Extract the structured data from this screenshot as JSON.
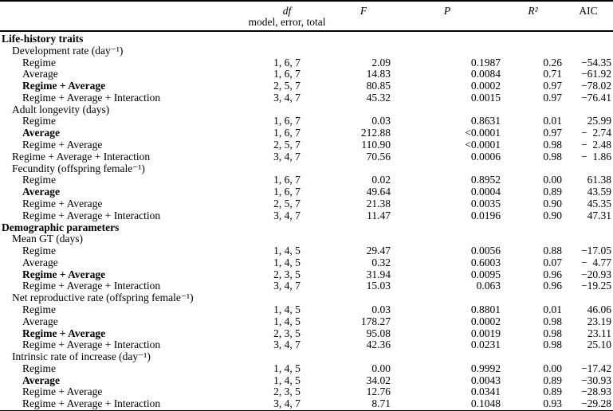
{
  "table": {
    "header": {
      "df_line1": "df",
      "df_line2": "model, error, total",
      "f": "F",
      "p": "P",
      "r2": "R²",
      "aic": "AIC"
    },
    "rows": [
      {
        "label": "Life-history traits",
        "indent": 0,
        "bold": true
      },
      {
        "label": "Development rate (day⁻¹)",
        "indent": 1
      },
      {
        "label": "Regime",
        "indent": 2,
        "df": "1, 6, 7",
        "f": "2.09",
        "p": "0.1987",
        "r2": "0.26",
        "aic": "−54.35"
      },
      {
        "label": "Average",
        "indent": 2,
        "df": "1, 6, 7",
        "f": "14.83",
        "p": "0.0084",
        "r2": "0.71",
        "aic": "−61.92"
      },
      {
        "label": "Regime + Average",
        "indent": 2,
        "bold": true,
        "df": "2, 5, 7",
        "f": "80.85",
        "p": "0.0002",
        "r2": "0.97",
        "aic": "−78.02"
      },
      {
        "label": "Regime + Average + Interaction",
        "indent": 2,
        "df": "3, 4, 7",
        "f": "45.32",
        "p": "0.0015",
        "r2": "0.97",
        "aic": "−76.41"
      },
      {
        "label": "Adult longevity (days)",
        "indent": 1
      },
      {
        "label": "Regime",
        "indent": 2,
        "df": "1, 6, 7",
        "f": "0.03",
        "p": "0.8631",
        "r2": "0.01",
        "aic": "25.99"
      },
      {
        "label": "Average",
        "indent": 2,
        "bold": true,
        "df": "1, 6, 7",
        "f": "212.88",
        "p": "<0.0001",
        "r2": "0.97",
        "aic": "− 2.74"
      },
      {
        "label": "Regime + Average",
        "indent": 2,
        "df": "2, 5, 7",
        "f": "110.90",
        "p": "<0.0001",
        "r2": "0.98",
        "aic": "− 2.48"
      },
      {
        "label": "Regime + Average + Interaction",
        "indent": 1,
        "df": "3, 4, 7",
        "f": "70.56",
        "p": "0.0006",
        "r2": "0.98",
        "aic": "− 1.86"
      },
      {
        "label": "Fecundity (offspring female⁻¹)",
        "indent": 1
      },
      {
        "label": "Regime",
        "indent": 2,
        "df": "1, 6, 7",
        "f": "0.02",
        "p": "0.8952",
        "r2": "0.00",
        "aic": "61.38"
      },
      {
        "label": "Average",
        "indent": 2,
        "bold": true,
        "df": "1, 6, 7",
        "f": "49.64",
        "p": "0.0004",
        "r2": "0.89",
        "aic": "43.59"
      },
      {
        "label": "Regime + Average",
        "indent": 2,
        "df": "2, 5, 7",
        "f": "21.38",
        "p": "0.0035",
        "r2": "0.90",
        "aic": "45.35"
      },
      {
        "label": "Regime + Average + Interaction",
        "indent": 2,
        "df": "3, 4, 7",
        "f": "11.47",
        "p": "0.0196",
        "r2": "0.90",
        "aic": "47.31"
      },
      {
        "label": "Demographic parameters",
        "indent": 0,
        "bold": true
      },
      {
        "label": "Mean GT (days)",
        "indent": 1
      },
      {
        "label": "Regime",
        "indent": 2,
        "df": "1, 4, 5",
        "f": "29.47",
        "p": "0.0056",
        "r2": "0.88",
        "aic": "−17.05"
      },
      {
        "label": "Average",
        "indent": 2,
        "df": "1, 4, 5",
        "f": "0.32",
        "p": "0.6003",
        "r2": "0.07",
        "aic": "− 4.77"
      },
      {
        "label": "Regime + Average",
        "indent": 2,
        "bold": true,
        "df": "2, 3, 5",
        "f": "31.94",
        "p": "0.0095",
        "r2": "0.96",
        "aic": "−20.93"
      },
      {
        "label": "Regime + Average + Interaction",
        "indent": 2,
        "df": "3, 4, 7",
        "f": "15.03",
        "p": "0.063",
        "r2": "0.96",
        "aic": "−19.25"
      },
      {
        "label": "Net reproductive rate (offspring female⁻¹)",
        "indent": 1
      },
      {
        "label": "Regime",
        "indent": 2,
        "df": "1, 4, 5",
        "f": "0.03",
        "p": "0.8801",
        "r2": "0.01",
        "aic": "46.06"
      },
      {
        "label": "Average",
        "indent": 2,
        "df": "1, 4, 5",
        "f": "178.27",
        "p": "0.0002",
        "r2": "0.98",
        "aic": "23.19"
      },
      {
        "label": "Regime + Average",
        "indent": 2,
        "bold": true,
        "df": "2, 3, 5",
        "f": "95.08",
        "p": "0.0019",
        "r2": "0.98",
        "aic": "23.11"
      },
      {
        "label": "Regime + Average + Interaction",
        "indent": 2,
        "df": "3, 4, 7",
        "f": "42.36",
        "p": "0.0231",
        "r2": "0.98",
        "aic": "25.10"
      },
      {
        "label": "Intrinsic rate of increase (day⁻¹)",
        "indent": 1
      },
      {
        "label": "Regime",
        "indent": 2,
        "df": "1, 4, 5",
        "f": "0.00",
        "p": "0.9992",
        "r2": "0.00",
        "aic": "−17.42"
      },
      {
        "label": "Average",
        "indent": 2,
        "bold": true,
        "df": "1, 4, 5",
        "f": "34.02",
        "p": "0.0043",
        "r2": "0.89",
        "aic": "−30.93"
      },
      {
        "label": "Regime + Average",
        "indent": 2,
        "df": "2, 3, 5",
        "f": "12.76",
        "p": "0.0341",
        "r2": "0.89",
        "aic": "−28.93"
      },
      {
        "label": "Regime + Average + Interaction",
        "indent": 2,
        "df": "3, 4, 7",
        "f": "8.71",
        "p": "0.1048",
        "r2": "0.93",
        "aic": "−29.28"
      }
    ]
  }
}
